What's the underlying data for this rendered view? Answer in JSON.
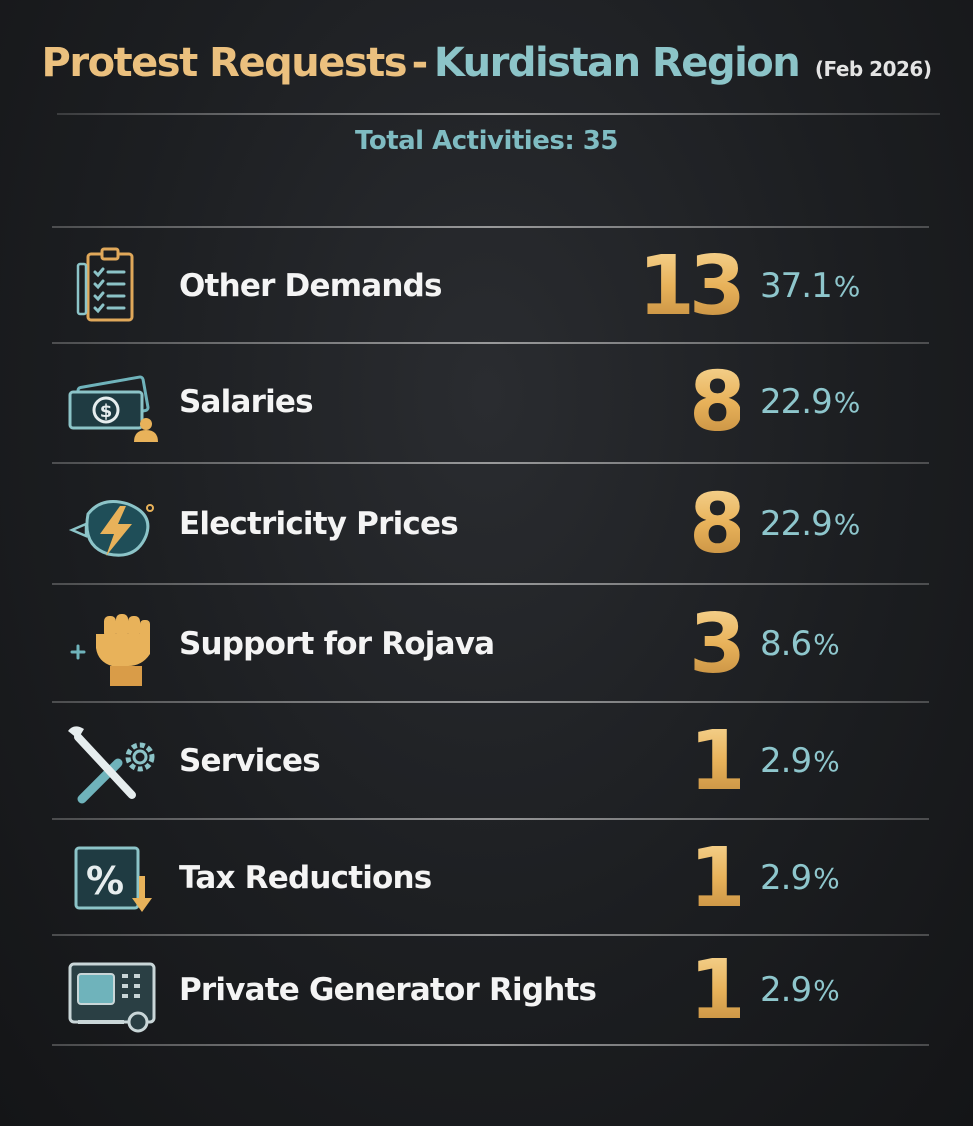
{
  "header": {
    "title_part1": "Protest Requests",
    "title_separator": "-",
    "title_part2": "Kurdistan Region",
    "title_date": "(Feb 2026)",
    "total_label": "Total Activities: 35"
  },
  "colors": {
    "gold": "#ebc07e",
    "teal": "#8cc4c8",
    "background": "#1c1e21"
  },
  "items": [
    {
      "label": "Other Demands",
      "count": "13",
      "percent": "37.1",
      "percent_sign": "%",
      "icon": "clipboard-checklist-icon"
    },
    {
      "label": "Salaries",
      "count": "8",
      "percent": "22.9",
      "percent_sign": "%",
      "icon": "money-cash-icon"
    },
    {
      "label": "Electricity Prices",
      "count": "8",
      "percent": "22.9",
      "percent_sign": "%",
      "icon": "electricity-bolt-icon"
    },
    {
      "label": "Support for Rojava",
      "count": "3",
      "percent": "8.6",
      "percent_sign": "%",
      "icon": "raised-fist-icon"
    },
    {
      "label": "Services",
      "count": "1",
      "percent": "2.9",
      "percent_sign": "%",
      "icon": "wrench-gear-icon"
    },
    {
      "label": "Tax Reductions",
      "count": "1",
      "percent": "2.9",
      "percent_sign": "%",
      "icon": "percent-down-icon"
    },
    {
      "label": "Private Generator Rights",
      "count": "1",
      "percent": "2.9",
      "percent_sign": "%",
      "icon": "generator-icon"
    }
  ]
}
